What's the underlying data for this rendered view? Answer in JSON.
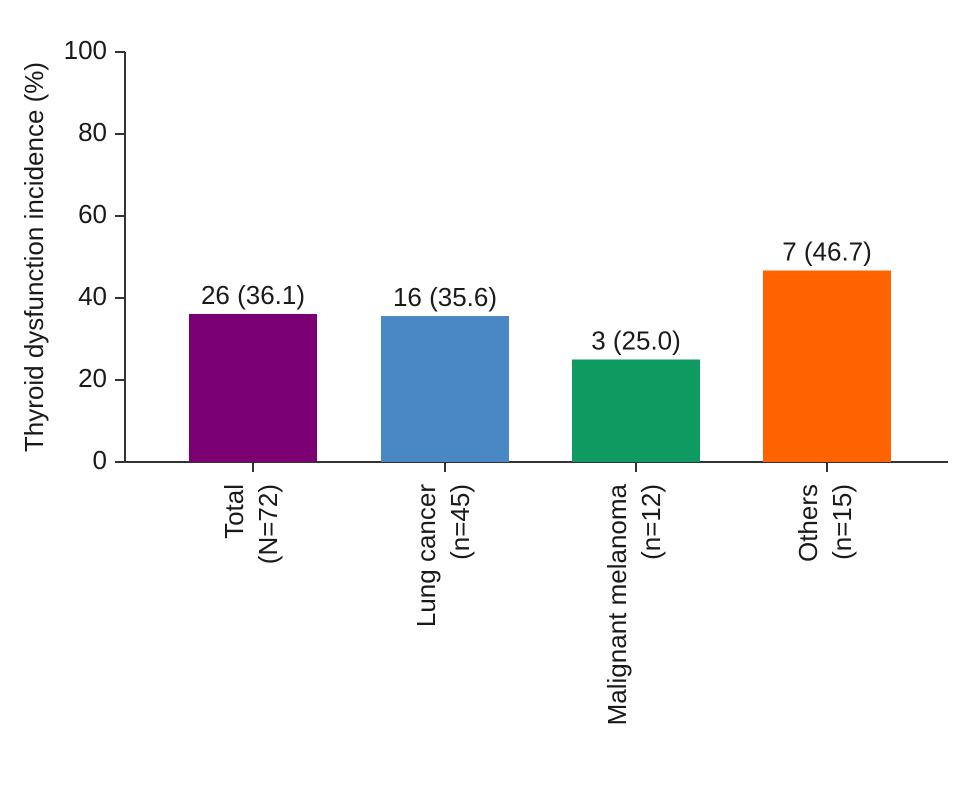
{
  "chart_data": {
    "type": "bar",
    "title": "",
    "ylabel": "Thyroid dysfunction incidence (%)",
    "xlabel": "",
    "ylim": [
      0,
      100
    ],
    "yticks": [
      0,
      20,
      40,
      60,
      80,
      100
    ],
    "grid": false,
    "legend": "none",
    "categories": [
      {
        "line1": "Total",
        "line2": "(N=72)"
      },
      {
        "line1": "Lung cancer",
        "line2": "(n=45)"
      },
      {
        "line1": "Malignant melanoma",
        "line2": "(n=12)"
      },
      {
        "line1": "Others",
        "line2": "(n=15)"
      }
    ],
    "values": [
      36.1,
      35.6,
      25.0,
      46.7
    ],
    "data_labels": [
      "26 (36.1)",
      "16 (35.6)",
      "3 (25.0)",
      "7 (46.7)"
    ],
    "colors": [
      "#7b0073",
      "#4a88c5",
      "#0f9a62",
      "#ff6200"
    ]
  }
}
